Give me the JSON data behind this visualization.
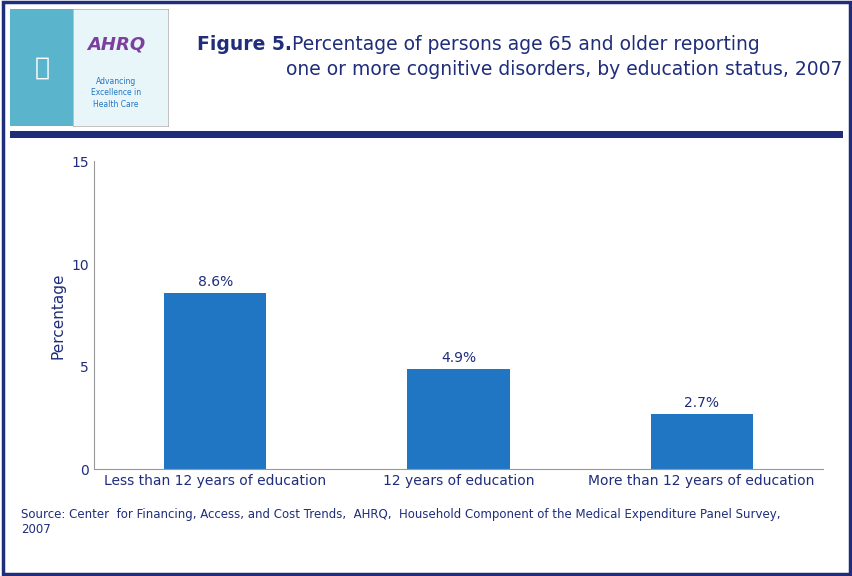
{
  "categories": [
    "Less than 12 years of education",
    "12 years of education",
    "More than 12 years of education"
  ],
  "values": [
    8.6,
    4.9,
    2.7
  ],
  "labels": [
    "8.6%",
    "4.9%",
    "2.7%"
  ],
  "bar_color": "#2176C4",
  "title_bold": "Figure 5.",
  "title_rest": " Percentage of persons age 65 and older reporting\none or more cognitive disorders, by education status, 2007",
  "ylabel": "Percentage",
  "ylim": [
    0,
    15
  ],
  "yticks": [
    0,
    5,
    10,
    15
  ],
  "background_color": "#ffffff",
  "border_color": "#1F2D7B",
  "divider_color": "#1F2D7B",
  "source_text": "Source: Center  for Financing, Access, and Cost Trends,  AHRQ,  Household Component of the Medical Expenditure Panel Survey,\n2007",
  "title_color": "#1F2D7B",
  "axis_label_color": "#1F2D7B",
  "tick_label_color": "#1F2D7B",
  "source_color": "#1F2D7B",
  "bar_label_color": "#1F2D7B",
  "title_fontsize": 13.5,
  "ylabel_fontsize": 11,
  "tick_fontsize": 10,
  "bar_label_fontsize": 10,
  "source_fontsize": 8.5,
  "logo_bg": "#1a9ec0",
  "logo_text_color": "#7B3F9E",
  "logo_subtext_color": "#2E86C1"
}
